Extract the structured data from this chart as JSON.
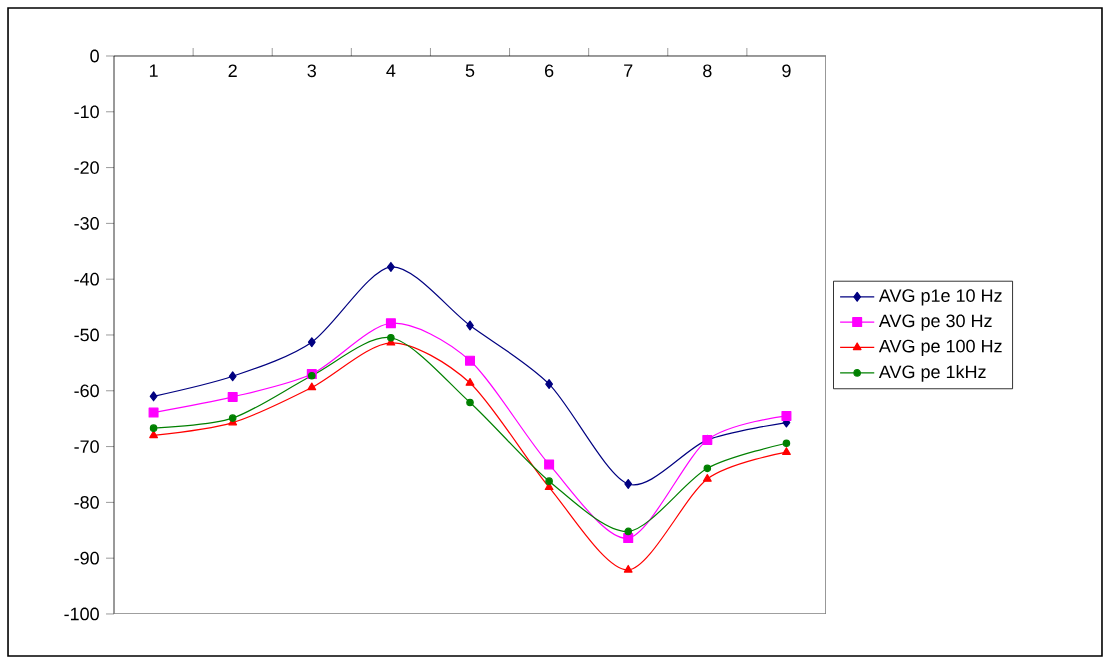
{
  "chart_data": {
    "type": "line",
    "categories": [
      "1",
      "2",
      "3",
      "4",
      "5",
      "6",
      "7",
      "8",
      "9"
    ],
    "series": [
      {
        "name": "AVG p1e 10 Hz",
        "color": "#000080",
        "marker": "diamond",
        "values": [
          -61,
          -57.4,
          -51.3,
          -37.8,
          -48.3,
          -58.8,
          -76.7,
          -68.8,
          -65.7
        ]
      },
      {
        "name": "AVG pe 30 Hz",
        "color": "#ff00ff",
        "marker": "square",
        "values": [
          -63.9,
          -61.1,
          -57,
          -47.9,
          -54.6,
          -73.2,
          -86.4,
          -68.8,
          -64.5
        ]
      },
      {
        "name": "AVG pe 100 Hz",
        "color": "#ff0000",
        "marker": "triangle",
        "values": [
          -68,
          -65.7,
          -59.4,
          -51.4,
          -58.6,
          -77.3,
          -92.1,
          -75.8,
          -71
        ]
      },
      {
        "name": "AVG pe 1kHz",
        "color": "#008000",
        "marker": "circle",
        "values": [
          -66.7,
          -64.9,
          -57.3,
          -50.5,
          -62.1,
          -76.2,
          -85.2,
          -73.9,
          -69.4
        ]
      }
    ],
    "ylim": [
      -100,
      0
    ],
    "yticks": [
      0,
      -10,
      -20,
      -30,
      -40,
      -50,
      -60,
      -70,
      -80,
      -90,
      -100
    ],
    "legend": "right",
    "grid": false,
    "line_style": "solid"
  }
}
